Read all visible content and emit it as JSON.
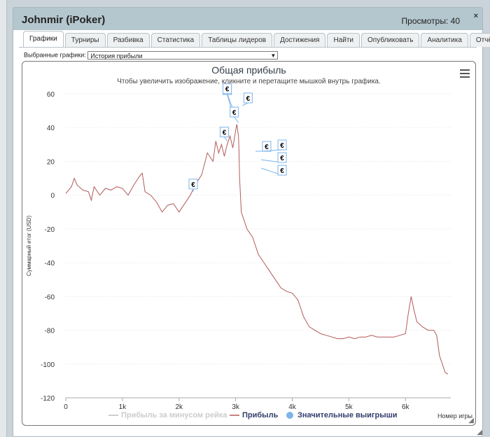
{
  "window": {
    "title": "Johnmir (iPoker)",
    "views_label": "Просмотры: 40",
    "close_symbol": "×"
  },
  "tabs": [
    {
      "label": "Графики",
      "active": true
    },
    {
      "label": "Турниры"
    },
    {
      "label": "Разбивка"
    },
    {
      "label": "Статистика"
    },
    {
      "label": "Таблицы лидеров"
    },
    {
      "label": "Достижения"
    },
    {
      "label": "Найти"
    },
    {
      "label": "Опубликовать"
    },
    {
      "label": "Аналитика"
    },
    {
      "label": "Отчёты"
    }
  ],
  "selector": {
    "label": "Выбранные графики:",
    "value": "История прибыли"
  },
  "chart": {
    "title": "Общая прибыль",
    "subtitle": "Чтобы увеличить изображение, кликните и перетащите мышкой внутрь графика.",
    "x_unit_label": "Номер игры",
    "marker_symbol": "€"
  },
  "legend": [
    {
      "label": "Прибыль за минусом рейка",
      "color": "#cccccc",
      "kind": "line"
    },
    {
      "label": "Прибыль",
      "color": "#333d6b",
      "kind": "line"
    },
    {
      "label": "Значительные выигрыши",
      "color": "#333d6b",
      "kind": "dot"
    }
  ],
  "colors": {
    "profit_line": "#b35a5a",
    "marker_border": "#7cb5ec",
    "legend_line_profit": "#c98080",
    "legend_dot": "#7cb5ec"
  },
  "chart_data": {
    "type": "line",
    "title": "Общая прибыль",
    "xlabel": "Номер игры",
    "ylabel": "Суммарный итог (USD)",
    "xlim": [
      0,
      6800
    ],
    "ylim": [
      -120,
      60
    ],
    "x_ticks": [
      0,
      1000,
      2000,
      3000,
      4000,
      5000,
      6000
    ],
    "x_tick_labels": [
      "0",
      "1k",
      "2k",
      "3k",
      "4k",
      "5k",
      "6k"
    ],
    "y_ticks": [
      60,
      40,
      20,
      0,
      -20,
      -40,
      -60,
      -80,
      -100,
      -120
    ],
    "grid": true,
    "series": [
      {
        "name": "Прибыль",
        "x": [
          0,
          100,
          150,
          200,
          300,
          400,
          450,
          500,
          600,
          700,
          800,
          900,
          1000,
          1100,
          1200,
          1300,
          1350,
          1400,
          1500,
          1600,
          1700,
          1800,
          1900,
          2000,
          2100,
          2200,
          2300,
          2400,
          2500,
          2600,
          2650,
          2700,
          2750,
          2800,
          2850,
          2900,
          2950,
          3000,
          3020,
          3050,
          3060,
          3070,
          3100,
          3200,
          3300,
          3350,
          3400,
          3500,
          3600,
          3700,
          3800,
          3900,
          4000,
          4100,
          4200,
          4300,
          4400,
          4500,
          4600,
          4700,
          4800,
          4900,
          5000,
          5100,
          5200,
          5300,
          5400,
          5500,
          5600,
          5700,
          5800,
          5900,
          6000,
          6050,
          6100,
          6150,
          6200,
          6300,
          6400,
          6500,
          6550,
          6600,
          6650,
          6700,
          6750
        ],
        "y": [
          1,
          5,
          10,
          6,
          3,
          2,
          -3,
          5,
          0,
          4,
          3,
          5,
          4,
          0,
          6,
          11,
          13,
          2,
          0,
          -4,
          -10,
          -6,
          -5,
          -10,
          -5,
          0,
          7,
          12,
          25,
          20,
          32,
          25,
          30,
          23,
          30,
          35,
          28,
          38,
          42,
          35,
          25,
          10,
          -10,
          -20,
          -25,
          -30,
          -35,
          -40,
          -45,
          -50,
          -55,
          -57,
          -58,
          -62,
          -72,
          -78,
          -80,
          -82,
          -83,
          -84,
          -85,
          -85,
          -84,
          -85,
          -84,
          -84,
          -83,
          -84,
          -84,
          -84,
          -84,
          -83,
          -82,
          -70,
          -60,
          -68,
          -75,
          -78,
          -80,
          -80,
          -83,
          -95,
          -100,
          -105,
          -106
        ]
      }
    ],
    "significant_wins": [
      {
        "x": 2250,
        "y": 2,
        "label": "€"
      },
      {
        "x": 2850,
        "y": 32,
        "label": "€"
      },
      {
        "x": 2950,
        "y": 48,
        "label": "€"
      },
      {
        "x": 2950,
        "y": 51,
        "label": "€"
      },
      {
        "x": 3050,
        "y": 43,
        "label": "€"
      },
      {
        "x": 3120,
        "y": 53,
        "label": "€"
      },
      {
        "x": 3350,
        "y": 26,
        "label": "€"
      },
      {
        "x": 3450,
        "y": 26,
        "label": "€"
      },
      {
        "x": 3450,
        "y": 21,
        "label": "€"
      },
      {
        "x": 3450,
        "y": 16,
        "label": "€"
      }
    ]
  }
}
